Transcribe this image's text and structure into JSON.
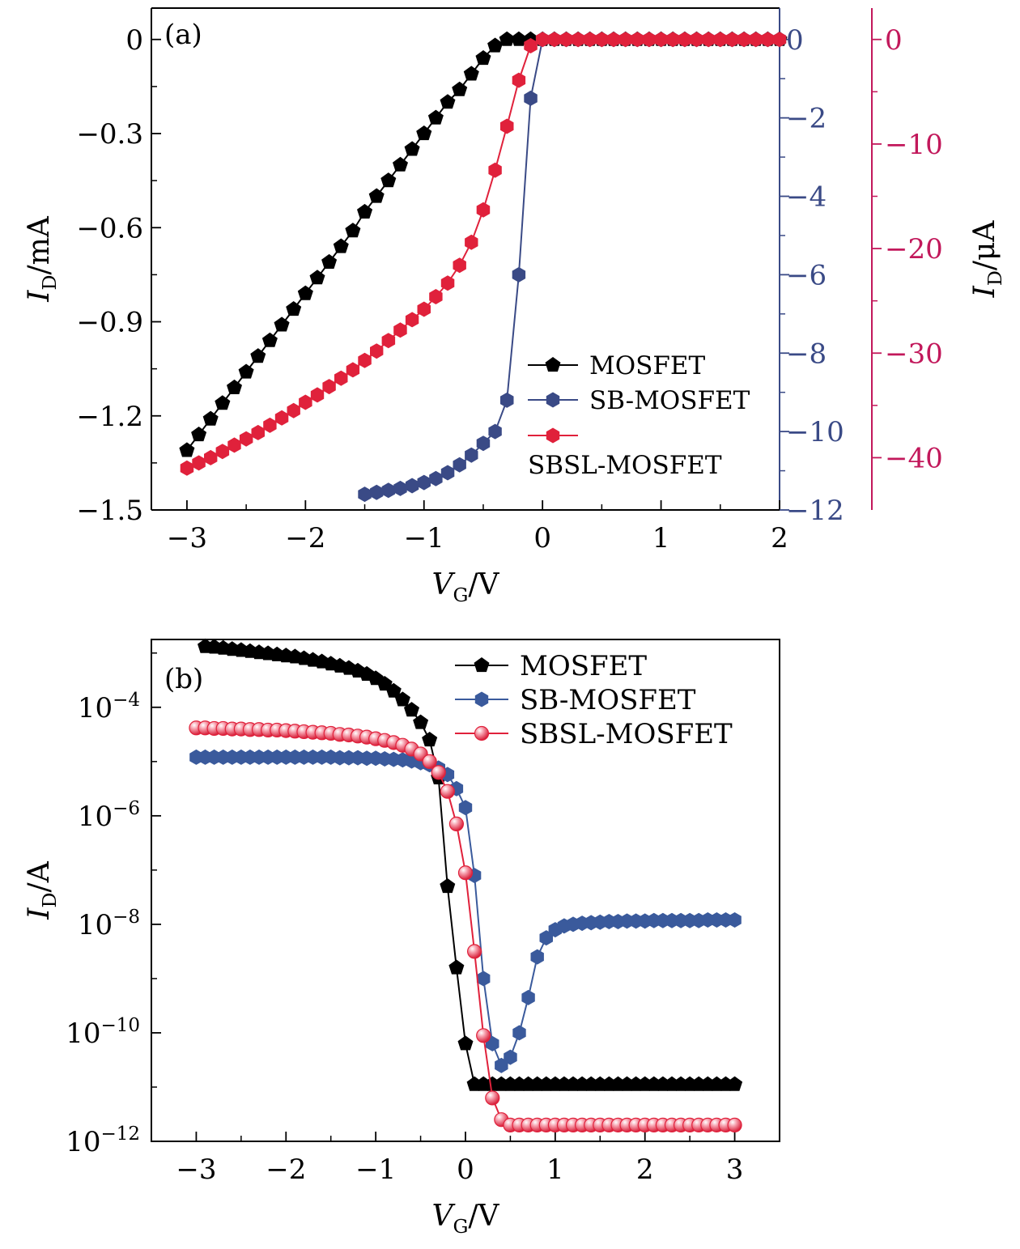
{
  "chart_data": [
    {
      "panel_label": "(a)",
      "type": "line",
      "xlabel_main": "V",
      "xlabel_sub": "G",
      "xlabel_tail": "/V",
      "xlim": [
        -3.3,
        2
      ],
      "xticks": [
        -3,
        -2,
        -1,
        0,
        1,
        2
      ],
      "x_tick_labels": [
        "−3",
        "−2",
        "−1",
        "0",
        "1",
        "2"
      ],
      "axes": {
        "left": {
          "label_main": "I",
          "label_sub": "D",
          "label_tail": "/mA",
          "ylim": [
            -1.5,
            0.1
          ],
          "ticks": [
            0,
            -0.3,
            -0.6,
            -0.9,
            -1.2,
            -1.5
          ],
          "tick_labels": [
            "0",
            "−0.3",
            "−0.6",
            "−0.9",
            "−1.2",
            "−1.5"
          ],
          "color": "#000000"
        },
        "right1": {
          "ylim": [
            -12,
            0.8
          ],
          "ticks": [
            0,
            -2,
            -4,
            -6,
            -8,
            -10,
            -12
          ],
          "tick_labels": [
            "0",
            "−2",
            "−4",
            "−6",
            "−8",
            "−10",
            "−12"
          ],
          "color": "#3a4a86"
        },
        "right2": {
          "label_main": "I",
          "label_sub": "D",
          "label_tail": "/μA",
          "ylim": [
            -45,
            3
          ],
          "ticks": [
            0,
            -10,
            -20,
            -30,
            -40
          ],
          "tick_labels": [
            "0",
            "−10",
            "−20",
            "−30",
            "−40"
          ],
          "color": "#c2185b"
        }
      },
      "legend_position": "right-lower",
      "series": [
        {
          "name": "MOSFET",
          "axis": "left",
          "color": "#000000",
          "marker": "pentagon",
          "x": [
            -3.0,
            -2.9,
            -2.8,
            -2.7,
            -2.6,
            -2.5,
            -2.4,
            -2.3,
            -2.2,
            -2.1,
            -2.0,
            -1.9,
            -1.8,
            -1.7,
            -1.6,
            -1.5,
            -1.4,
            -1.3,
            -1.2,
            -1.1,
            -1.0,
            -0.9,
            -0.8,
            -0.7,
            -0.6,
            -0.5,
            -0.4,
            -0.3,
            -0.2,
            -0.1,
            0.0,
            0.1,
            0.2,
            0.3,
            0.4,
            0.5,
            0.6,
            0.7,
            0.8,
            0.9,
            1.0,
            1.1,
            1.2,
            1.3,
            1.4,
            1.5,
            1.6,
            1.7,
            1.8,
            1.9,
            2.0
          ],
          "y": [
            -1.31,
            -1.26,
            -1.21,
            -1.16,
            -1.11,
            -1.06,
            -1.01,
            -0.96,
            -0.91,
            -0.86,
            -0.81,
            -0.76,
            -0.71,
            -0.66,
            -0.61,
            -0.55,
            -0.5,
            -0.45,
            -0.4,
            -0.35,
            -0.3,
            -0.25,
            -0.2,
            -0.16,
            -0.11,
            -0.06,
            -0.02,
            0,
            0,
            0,
            0,
            0,
            0,
            0,
            0,
            0,
            0,
            0,
            0,
            0,
            0,
            0,
            0,
            0,
            0,
            0,
            0,
            0,
            0,
            0,
            0
          ]
        },
        {
          "name": "SB-MOSFET",
          "axis": "right1",
          "color": "#3a4a86",
          "marker": "hexagon",
          "x": [
            -1.5,
            -1.4,
            -1.3,
            -1.2,
            -1.1,
            -1.0,
            -0.9,
            -0.8,
            -0.7,
            -0.6,
            -0.5,
            -0.4,
            -0.3,
            -0.2,
            -0.1,
            0.0,
            0.1,
            0.2,
            0.3,
            0.4,
            0.5,
            0.6,
            0.7,
            0.8,
            0.9,
            1.0,
            1.1,
            1.2,
            1.3,
            1.4,
            1.5,
            1.6,
            1.7,
            1.8,
            1.9,
            2.0
          ],
          "y": [
            -11.6,
            -11.55,
            -11.5,
            -11.45,
            -11.38,
            -11.3,
            -11.2,
            -11.05,
            -10.85,
            -10.6,
            -10.3,
            -10.0,
            -9.2,
            -6.0,
            -1.5,
            0,
            0,
            0,
            0,
            0,
            0,
            0,
            0,
            0,
            0,
            0,
            0,
            0,
            0,
            0,
            0,
            0,
            0,
            0,
            0,
            0
          ]
        },
        {
          "name": "SBSL-MOSFET",
          "axis": "right2",
          "color": "#e0213b",
          "marker": "hexagon",
          "x": [
            -3.0,
            -2.9,
            -2.8,
            -2.7,
            -2.6,
            -2.5,
            -2.4,
            -2.3,
            -2.2,
            -2.1,
            -2.0,
            -1.9,
            -1.8,
            -1.7,
            -1.6,
            -1.5,
            -1.4,
            -1.3,
            -1.2,
            -1.1,
            -1.0,
            -0.9,
            -0.8,
            -0.7,
            -0.6,
            -0.5,
            -0.4,
            -0.3,
            -0.2,
            -0.1,
            0.0,
            0.1,
            0.2,
            0.3,
            0.4,
            0.5,
            0.6,
            0.7,
            0.8,
            0.9,
            1.0,
            1.1,
            1.2,
            1.3,
            1.4,
            1.5,
            1.6,
            1.7,
            1.8,
            1.9,
            2.0
          ],
          "y": [
            -41.0,
            -40.5,
            -40.0,
            -39.4,
            -38.8,
            -38.2,
            -37.6,
            -36.9,
            -36.2,
            -35.5,
            -34.7,
            -34.0,
            -33.2,
            -32.4,
            -31.6,
            -30.7,
            -29.8,
            -28.8,
            -27.8,
            -26.8,
            -25.8,
            -24.6,
            -23.3,
            -21.6,
            -19.4,
            -16.3,
            -12.5,
            -8.3,
            -3.9,
            -0.6,
            0,
            0,
            0,
            0,
            0,
            0,
            0,
            0,
            0,
            0,
            0,
            0,
            0,
            0,
            0,
            0,
            0,
            0,
            0,
            0,
            0
          ]
        }
      ]
    },
    {
      "panel_label": "(b)",
      "type": "line",
      "xlabel_main": "V",
      "xlabel_sub": "G",
      "xlabel_tail": "/V",
      "ylabel_main": "I",
      "ylabel_sub": "D",
      "ylabel_tail": "/A",
      "y_scale": "log",
      "xlim": [
        -3.5,
        3.5
      ],
      "ylim_log10": [
        -12,
        -2.75
      ],
      "xticks": [
        -3,
        -2,
        -1,
        0,
        1,
        2,
        3
      ],
      "x_tick_labels": [
        "−3",
        "−2",
        "−1",
        "0",
        "1",
        "2",
        "3"
      ],
      "y_tick_exponents": [
        -4,
        -6,
        -8,
        -10,
        -12
      ],
      "y_tick_base": "10",
      "y_tick_exponent_labels": [
        "−4",
        "−6",
        "−8",
        "−10",
        "−12"
      ],
      "legend_position": "top-right",
      "series": [
        {
          "name": "MOSFET",
          "color": "#000000",
          "marker": "pentagon",
          "x": [
            -2.9,
            -2.8,
            -2.7,
            -2.6,
            -2.5,
            -2.4,
            -2.3,
            -2.2,
            -2.1,
            -2.0,
            -1.9,
            -1.8,
            -1.7,
            -1.6,
            -1.5,
            -1.4,
            -1.3,
            -1.2,
            -1.1,
            -1.0,
            -0.9,
            -0.8,
            -0.7,
            -0.6,
            -0.5,
            -0.4,
            -0.3,
            -0.2,
            -0.1,
            0.0,
            0.1,
            0.2,
            0.3,
            0.4,
            0.5,
            0.6,
            0.7,
            0.8,
            0.9,
            1.0,
            1.1,
            1.2,
            1.3,
            1.4,
            1.5,
            1.6,
            1.7,
            1.8,
            1.9,
            2.0,
            2.1,
            2.2,
            2.3,
            2.4,
            2.5,
            2.6,
            2.7,
            2.8,
            2.9,
            3.0
          ],
          "y_log10": [
            -2.88,
            -2.89,
            -2.91,
            -2.93,
            -2.95,
            -2.97,
            -2.99,
            -3.01,
            -3.03,
            -3.05,
            -3.07,
            -3.1,
            -3.13,
            -3.16,
            -3.2,
            -3.24,
            -3.28,
            -3.33,
            -3.39,
            -3.47,
            -3.57,
            -3.7,
            -3.86,
            -4.05,
            -4.28,
            -4.6,
            -5.3,
            -7.3,
            -8.8,
            -10.2,
            -10.95,
            -10.95,
            -10.95,
            -10.95,
            -10.95,
            -10.95,
            -10.95,
            -10.95,
            -10.95,
            -10.95,
            -10.95,
            -10.95,
            -10.95,
            -10.95,
            -10.95,
            -10.95,
            -10.95,
            -10.95,
            -10.95,
            -10.95,
            -10.95,
            -10.95,
            -10.95,
            -10.95,
            -10.95,
            -10.95,
            -10.95,
            -10.95,
            -10.95,
            -10.95
          ]
        },
        {
          "name": "SB-MOSFET",
          "color": "#3a5a9c",
          "marker": "hexagon",
          "x": [
            -3.0,
            -2.9,
            -2.8,
            -2.7,
            -2.6,
            -2.5,
            -2.4,
            -2.3,
            -2.2,
            -2.1,
            -2.0,
            -1.9,
            -1.8,
            -1.7,
            -1.6,
            -1.5,
            -1.4,
            -1.3,
            -1.2,
            -1.1,
            -1.0,
            -0.9,
            -0.8,
            -0.7,
            -0.6,
            -0.5,
            -0.4,
            -0.3,
            -0.2,
            -0.1,
            0.0,
            0.1,
            0.2,
            0.3,
            0.4,
            0.5,
            0.6,
            0.7,
            0.8,
            0.9,
            1.0,
            1.1,
            1.2,
            1.3,
            1.4,
            1.5,
            1.6,
            1.7,
            1.8,
            1.9,
            2.0,
            2.1,
            2.2,
            2.3,
            2.4,
            2.5,
            2.6,
            2.7,
            2.8,
            2.9,
            3.0
          ],
          "y_log10": [
            -4.92,
            -4.92,
            -4.92,
            -4.92,
            -4.92,
            -4.92,
            -4.92,
            -4.92,
            -4.92,
            -4.92,
            -4.92,
            -4.92,
            -4.92,
            -4.92,
            -4.92,
            -4.92,
            -4.93,
            -4.93,
            -4.93,
            -4.94,
            -4.94,
            -4.95,
            -4.96,
            -4.97,
            -4.99,
            -5.02,
            -5.06,
            -5.12,
            -5.24,
            -5.5,
            -5.85,
            -7.1,
            -9.0,
            -10.2,
            -10.6,
            -10.45,
            -10.0,
            -9.35,
            -8.6,
            -8.25,
            -8.1,
            -8.03,
            -8.0,
            -7.98,
            -7.97,
            -7.96,
            -7.95,
            -7.95,
            -7.94,
            -7.94,
            -7.94,
            -7.93,
            -7.93,
            -7.93,
            -7.93,
            -7.93,
            -7.93,
            -7.92,
            -7.92,
            -7.92,
            -7.92
          ]
        },
        {
          "name": "SBSL-MOSFET",
          "color": "#e0213b",
          "marker": "sphere",
          "x": [
            -3.0,
            -2.9,
            -2.8,
            -2.7,
            -2.6,
            -2.5,
            -2.4,
            -2.3,
            -2.2,
            -2.1,
            -2.0,
            -1.9,
            -1.8,
            -1.7,
            -1.6,
            -1.5,
            -1.4,
            -1.3,
            -1.2,
            -1.1,
            -1.0,
            -0.9,
            -0.8,
            -0.7,
            -0.6,
            -0.5,
            -0.4,
            -0.3,
            -0.2,
            -0.1,
            0.0,
            0.1,
            0.2,
            0.3,
            0.4,
            0.5,
            0.6,
            0.7,
            0.8,
            0.9,
            1.0,
            1.1,
            1.2,
            1.3,
            1.4,
            1.5,
            1.6,
            1.7,
            1.8,
            1.9,
            2.0,
            2.1,
            2.2,
            2.3,
            2.4,
            2.5,
            2.6,
            2.7,
            2.8,
            2.9,
            3.0
          ],
          "y_log10": [
            -4.38,
            -4.38,
            -4.39,
            -4.39,
            -4.4,
            -4.4,
            -4.41,
            -4.41,
            -4.42,
            -4.42,
            -4.43,
            -4.44,
            -4.45,
            -4.46,
            -4.47,
            -4.48,
            -4.5,
            -4.51,
            -4.53,
            -4.55,
            -4.58,
            -4.61,
            -4.65,
            -4.7,
            -4.77,
            -4.86,
            -5.0,
            -5.2,
            -5.55,
            -6.15,
            -7.05,
            -8.5,
            -10.05,
            -11.2,
            -11.6,
            -11.7,
            -11.7,
            -11.7,
            -11.7,
            -11.7,
            -11.7,
            -11.7,
            -11.7,
            -11.7,
            -11.7,
            -11.7,
            -11.7,
            -11.7,
            -11.7,
            -11.7,
            -11.7,
            -11.7,
            -11.7,
            -11.7,
            -11.7,
            -11.7,
            -11.7,
            -11.7,
            -11.7,
            -11.7,
            -11.7
          ]
        }
      ]
    }
  ]
}
